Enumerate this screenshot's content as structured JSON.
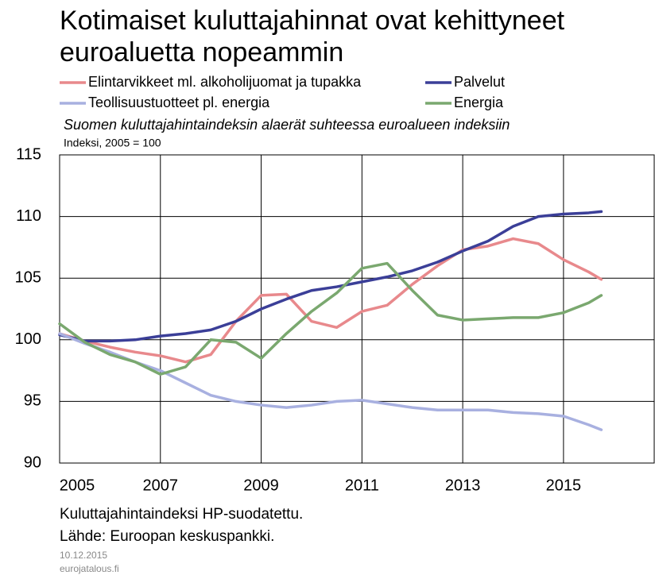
{
  "chart_data": {
    "type": "line",
    "title": "Kotimaiset kuluttajahinnat ovat kehittyneet euroaluetta nopeammin",
    "subtitle": "Suomen kuluttajahintaindeksin alaerät suhteessa euroalueen indeksiin",
    "y_label": "Indeksi, 2005 = 100",
    "notes": [
      "Kuluttajahintaindeksi HP-suodatettu.",
      "Lähde: Euroopan keskuspankki."
    ],
    "date": "10.12.2015",
    "source_site": "eurojatalous.fi",
    "x": [
      2005,
      2005.5,
      2006,
      2006.5,
      2007,
      2007.5,
      2008,
      2008.5,
      2009,
      2009.5,
      2010,
      2010.5,
      2011,
      2011.5,
      2012,
      2012.5,
      2013,
      2013.5,
      2014,
      2014.5,
      2015,
      2015.5,
      2015.75
    ],
    "series": [
      {
        "name": "Elintarvikkeet ml. alkoholijuomat ja tupakka",
        "color": "#e8898c",
        "values": [
          100.5,
          99.9,
          99.4,
          99.0,
          98.7,
          98.2,
          98.8,
          101.5,
          103.6,
          103.7,
          101.5,
          101.0,
          102.3,
          102.8,
          104.5,
          106.0,
          107.3,
          107.6,
          108.2,
          107.8,
          106.5,
          105.5,
          104.9
        ]
      },
      {
        "name": "Palvelut",
        "color": "#3b3f98",
        "values": [
          100.4,
          99.9,
          99.9,
          100.0,
          100.3,
          100.5,
          100.8,
          101.5,
          102.5,
          103.3,
          104.0,
          104.3,
          104.7,
          105.1,
          105.6,
          106.3,
          107.2,
          108.0,
          109.2,
          110.0,
          110.2,
          110.3,
          110.4
        ]
      },
      {
        "name": "Teollisuustuotteet pl. energia",
        "color": "#a8b0e0",
        "values": [
          100.5,
          99.7,
          99.0,
          98.2,
          97.5,
          96.5,
          95.5,
          95.0,
          94.7,
          94.5,
          94.7,
          95.0,
          95.1,
          94.8,
          94.5,
          94.3,
          94.3,
          94.3,
          94.1,
          94.0,
          93.8,
          93.1,
          92.7
        ]
      },
      {
        "name": "Energia",
        "color": "#7aa86f",
        "values": [
          101.3,
          99.8,
          98.8,
          98.2,
          97.2,
          97.8,
          100.0,
          99.8,
          98.5,
          100.5,
          102.3,
          103.8,
          105.8,
          106.2,
          104.0,
          102.0,
          101.6,
          101.7,
          101.8,
          101.8,
          102.2,
          103.0,
          103.6
        ]
      }
    ],
    "xlim": [
      2005,
      2016.8
    ],
    "ylim": [
      90,
      115
    ],
    "xticks": [
      2005,
      2007,
      2009,
      2011,
      2013,
      2015
    ],
    "yticks": [
      90,
      95,
      100,
      105,
      110,
      115
    ],
    "grid": true
  }
}
